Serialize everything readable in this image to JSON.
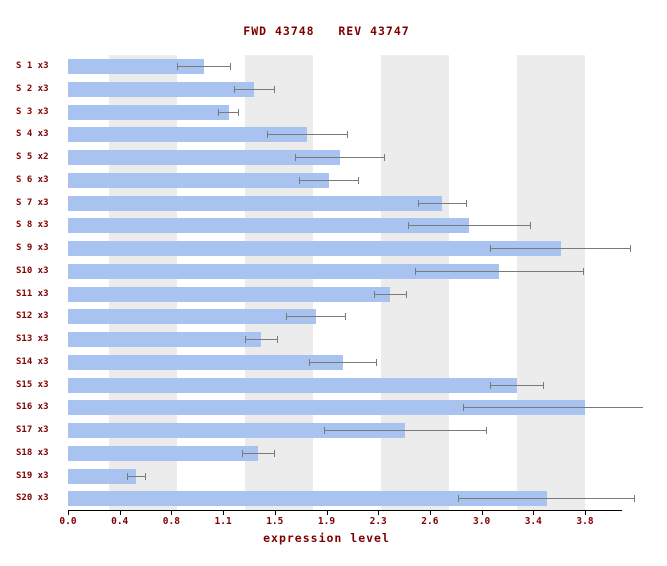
{
  "chart_data": {
    "type": "bar",
    "orientation": "horizontal",
    "title": "FWD 43748   REV 43747",
    "xlabel": "expression level",
    "x_ticks": [
      "0.0",
      "0.4",
      "0.8",
      "1.1",
      "1.5",
      "1.9",
      "2.3",
      "2.6",
      "3.0",
      "3.4",
      "3.8"
    ],
    "xlim": [
      0,
      3.8
    ],
    "grid": "alternating-vertical-stripes",
    "legend": "none",
    "categories": [
      "S 1 x3",
      "S 2 x3",
      "S 3 x3",
      "S 4 x3",
      "S 5 x2",
      "S 6 x3",
      "S 7 x3",
      "S 8 x3",
      "S 9 x3",
      "S10 x3",
      "S11 x3",
      "S12 x3",
      "S13 x3",
      "S14 x3",
      "S15 x3",
      "S16 x3",
      "S17 x3",
      "S18 x3",
      "S19 x3",
      "S20 x3"
    ],
    "values": [
      1.0,
      1.37,
      1.18,
      1.76,
      2.0,
      1.92,
      2.75,
      2.95,
      3.62,
      3.17,
      2.37,
      1.82,
      1.42,
      2.02,
      3.3,
      3.8,
      2.48,
      1.4,
      0.5,
      3.52
    ],
    "errors": [
      0.2,
      0.15,
      0.08,
      0.3,
      0.33,
      0.22,
      0.18,
      0.45,
      0.52,
      0.62,
      0.12,
      0.22,
      0.12,
      0.25,
      0.2,
      0.9,
      0.6,
      0.12,
      0.07,
      0.65
    ],
    "bar_color": "#a9c3f1",
    "stripe_color": "#ececec",
    "text_color": "#7e0000",
    "error_color": "#7a7a7a",
    "axis_color": "#000000"
  }
}
